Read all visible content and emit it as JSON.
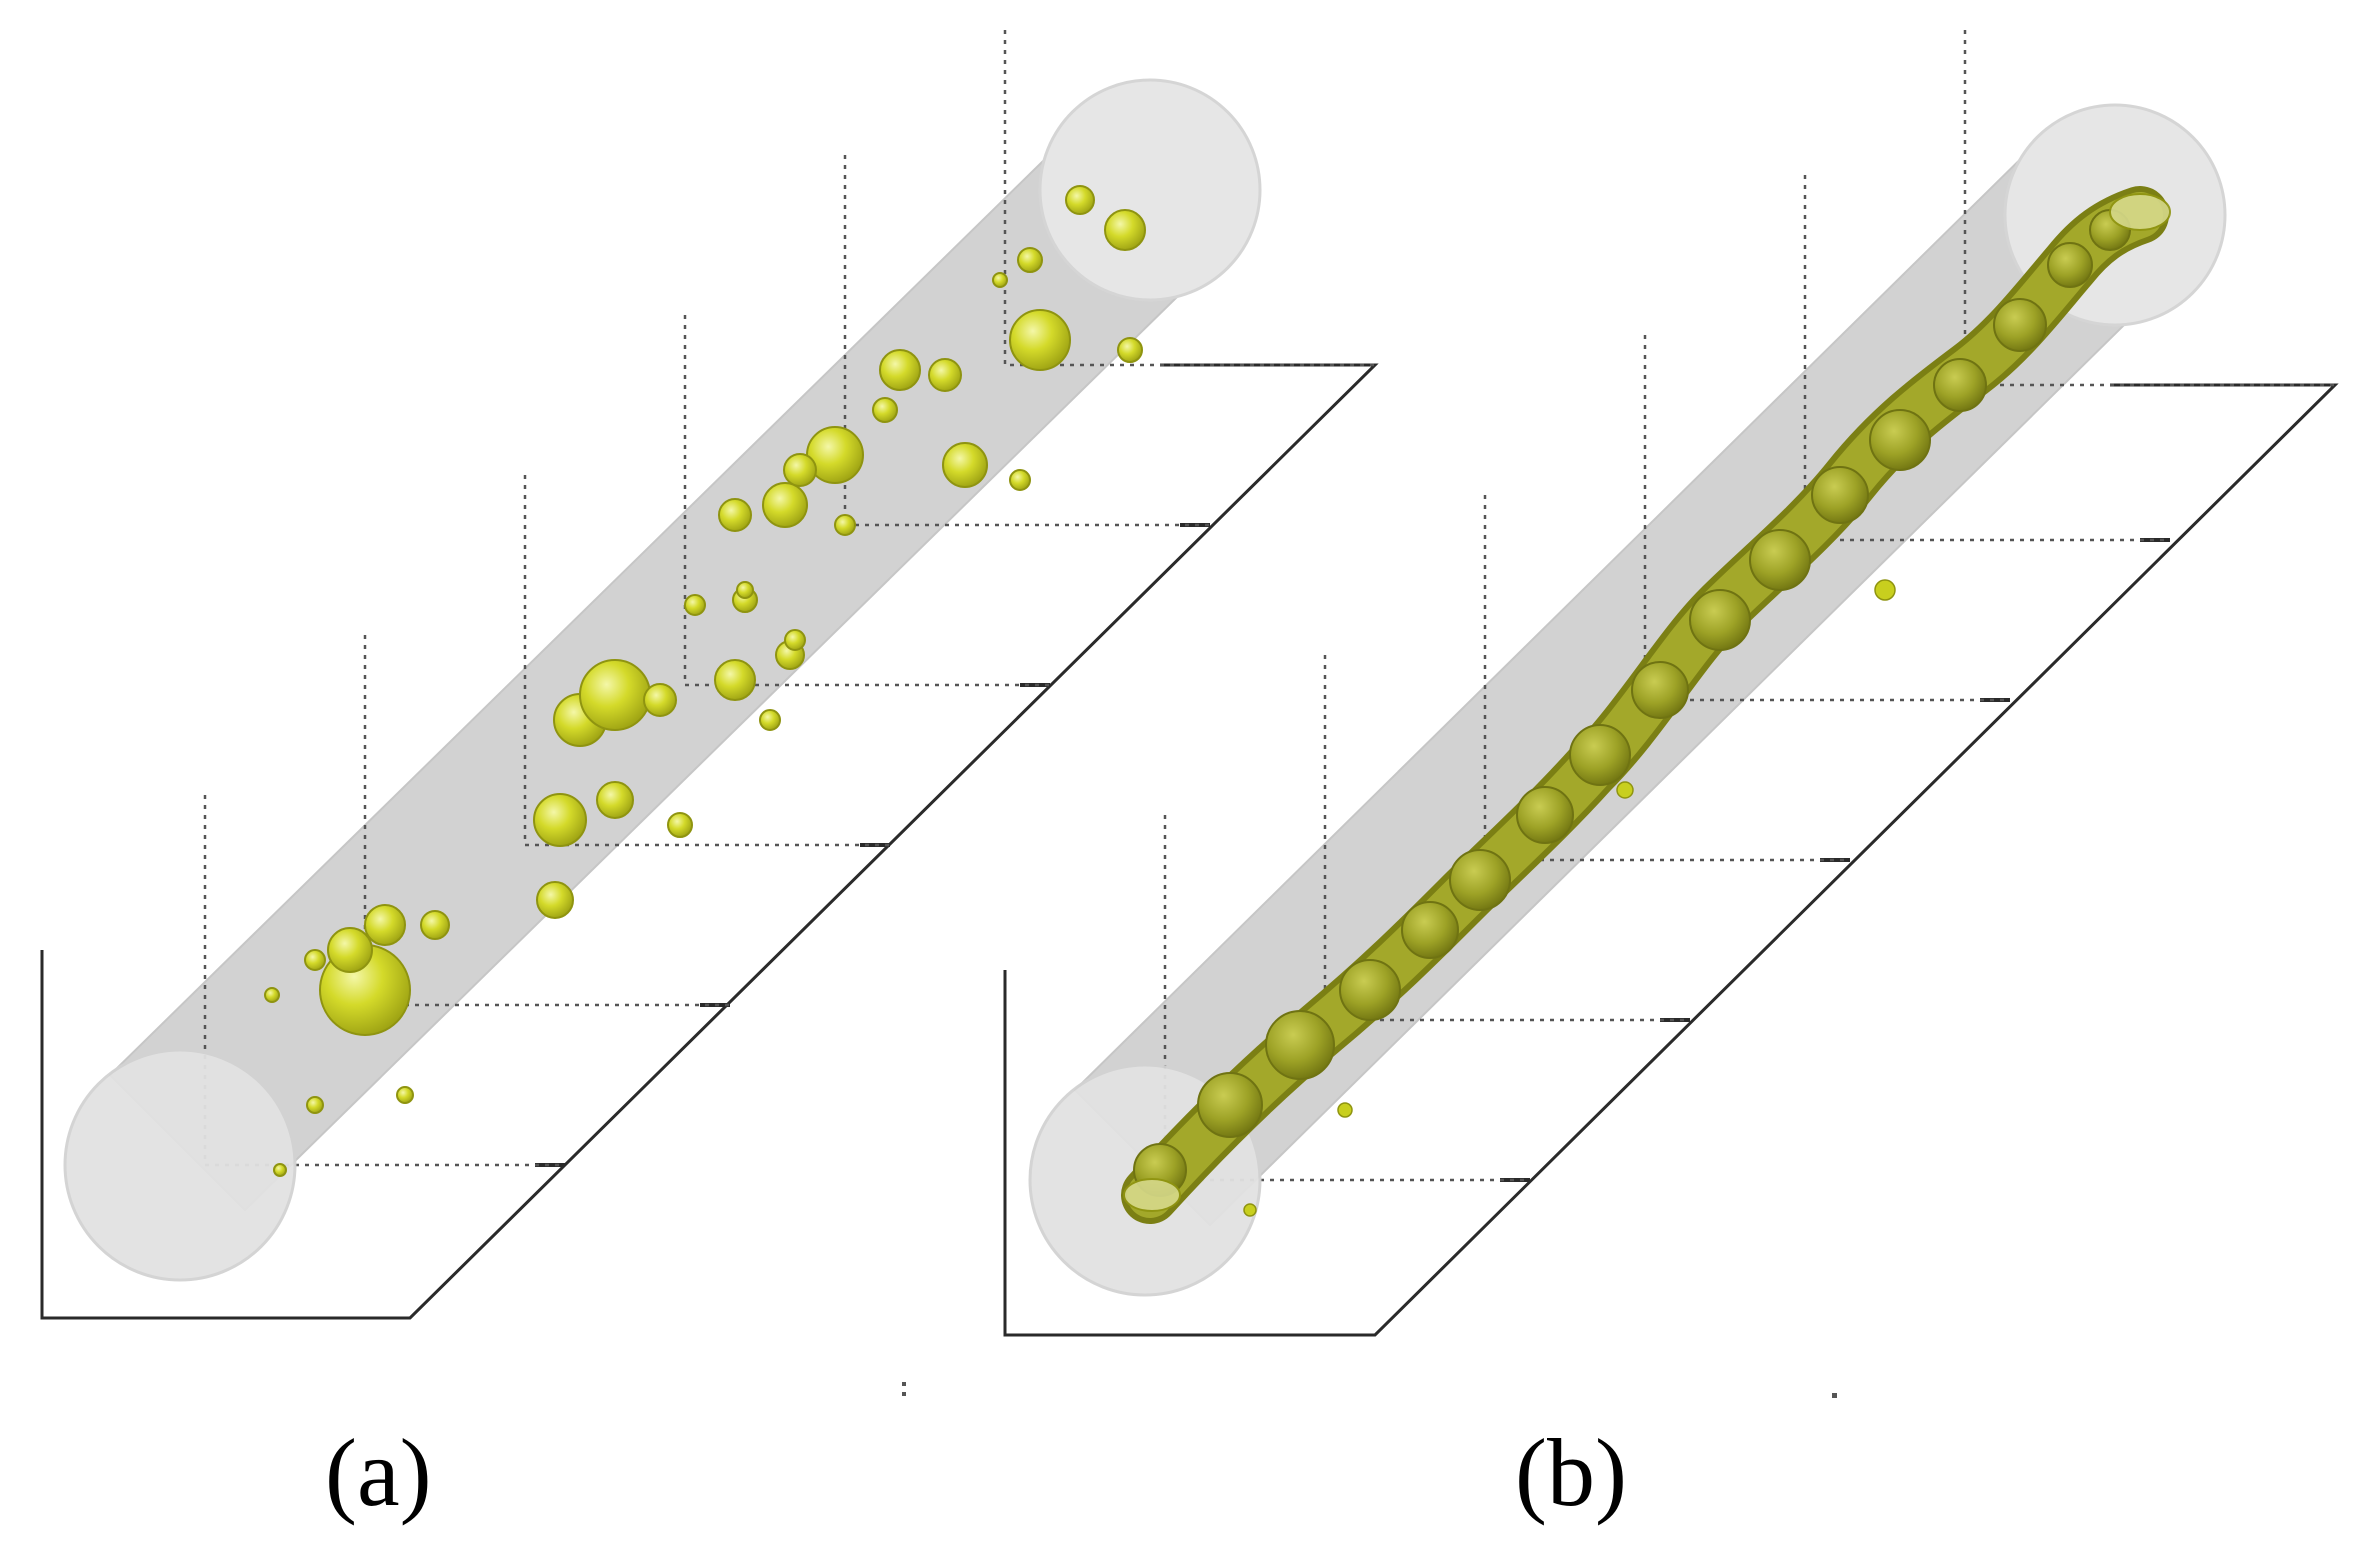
{
  "panels": [
    {
      "id": "a",
      "caption": "(a)",
      "content": "dispersed-droplets"
    },
    {
      "id": "b",
      "caption": "(b)",
      "content": "continuous-filament"
    }
  ],
  "colors": {
    "background": "#ffffff",
    "tube_body": "#d0d0d0",
    "tube_end": "#e8e8e8",
    "tube_edge": "#c4c4c4",
    "droplet_fill": "#c8cf1e",
    "droplet_highlight": "#f2f59a",
    "droplet_edge": "#8f9410",
    "filament_fill": "#9ea22a",
    "filament_edge": "#6f7312",
    "axis_line": "#222222",
    "grid_dotted": "#555555"
  }
}
